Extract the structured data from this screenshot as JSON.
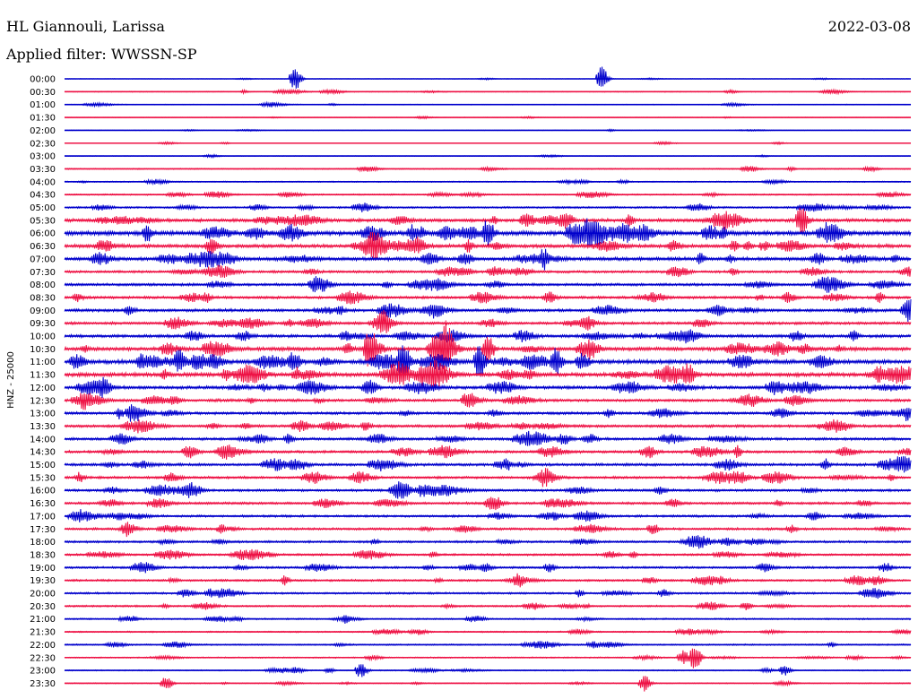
{
  "header": {
    "station": "HL Giannouli, Larissa",
    "date": "2022-03-08",
    "filter": "Applied filter: WWSSN-SP"
  },
  "colors": {
    "even_hour": "#0000cc",
    "odd_half_hour": "#ee1144"
  },
  "chart_data": {
    "type": "line",
    "title": "HL Giannouli, Larissa",
    "ylabel": "HNZ - 25000",
    "row_labels": [
      "00:00",
      "00:30",
      "01:00",
      "01:30",
      "02:00",
      "02:30",
      "03:00",
      "03:30",
      "04:00",
      "04:30",
      "05:00",
      "05:30",
      "06:00",
      "06:30",
      "07:00",
      "07:30",
      "08:00",
      "08:30",
      "09:00",
      "09:30",
      "10:00",
      "10:30",
      "11:00",
      "11:30",
      "12:00",
      "12:30",
      "13:00",
      "13:30",
      "14:00",
      "14:30",
      "15:00",
      "15:30",
      "16:00",
      "16:30",
      "17:00",
      "17:30",
      "18:00",
      "18:30",
      "19:00",
      "19:30",
      "20:00",
      "20:30",
      "21:00",
      "21:30",
      "22:00",
      "22:30",
      "23:00",
      "23:30"
    ],
    "activity_level": [
      0.5,
      0.9,
      0.7,
      0.6,
      0.5,
      0.5,
      0.6,
      1.1,
      1.1,
      1.4,
      1.8,
      3.2,
      4.2,
      3.5,
      3.4,
      2.4,
      2.5,
      2.6,
      2.8,
      2.6,
      3.0,
      3.6,
      4.0,
      3.8,
      3.0,
      2.7,
      2.6,
      2.6,
      2.6,
      2.5,
      2.6,
      2.4,
      2.4,
      2.3,
      2.2,
      2.3,
      2.1,
      2.1,
      2.1,
      2.0,
      1.9,
      1.7,
      1.5,
      1.3,
      1.4,
      1.2,
      1.1,
      1.0
    ],
    "bursts": [
      {
        "row": 0,
        "t": 0.273,
        "amp": 14
      },
      {
        "row": 0,
        "t": 0.635,
        "amp": 14
      },
      {
        "row": 45,
        "t": 0.745,
        "amp": 14
      },
      {
        "row": 45,
        "t": 0.73,
        "amp": 8
      },
      {
        "row": 47,
        "t": 0.12,
        "amp": 8
      },
      {
        "row": 47,
        "t": 0.685,
        "amp": 9
      },
      {
        "row": 46,
        "t": 0.35,
        "amp": 8
      },
      {
        "row": 46,
        "t": 0.85,
        "amp": 6
      },
      {
        "row": 21,
        "t": 0.36,
        "amp": 18
      },
      {
        "row": 21,
        "t": 0.45,
        "amp": 20
      },
      {
        "row": 21,
        "t": 0.5,
        "amp": 16
      },
      {
        "row": 22,
        "t": 0.4,
        "amp": 16
      },
      {
        "row": 22,
        "t": 0.49,
        "amp": 18
      },
      {
        "row": 12,
        "t": 0.5,
        "amp": 14
      },
      {
        "row": 11,
        "t": 0.87,
        "amp": 16
      },
      {
        "row": 22,
        "t": 0.58,
        "amp": 14
      }
    ],
    "ylim": [
      0,
      47
    ]
  }
}
